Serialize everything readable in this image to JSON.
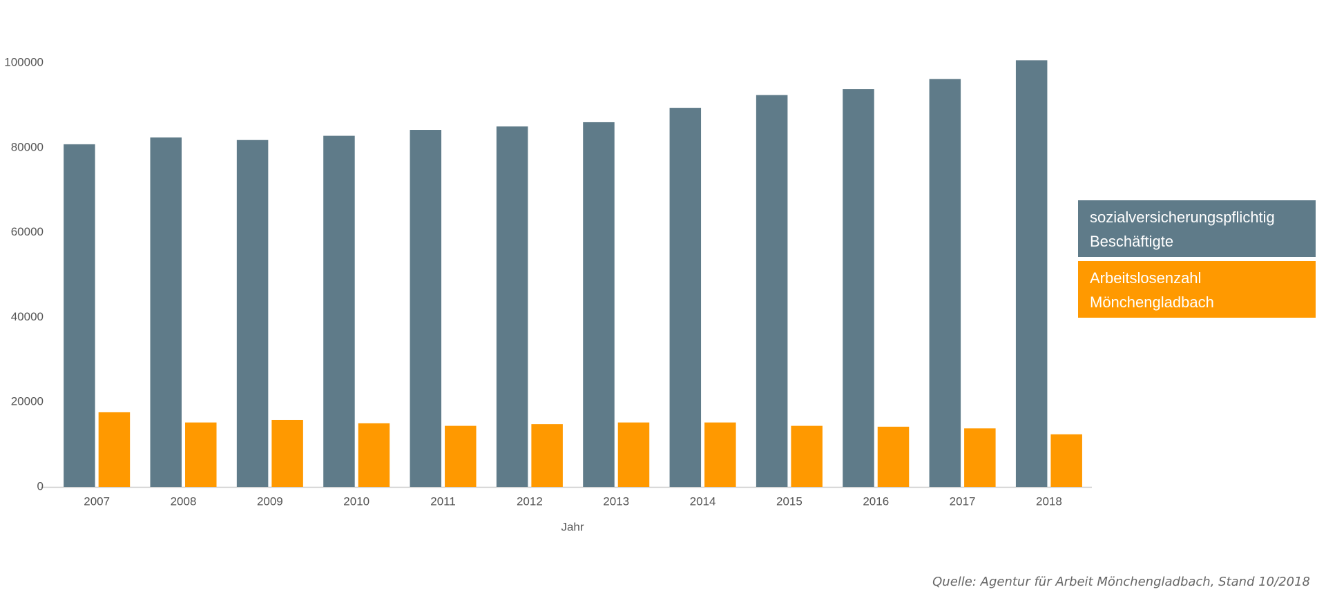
{
  "chart_data": {
    "type": "bar",
    "x_label": "Jahr",
    "categories": [
      "2007",
      "2008",
      "2009",
      "2010",
      "2011",
      "2012",
      "2013",
      "2014",
      "2015",
      "2016",
      "2017",
      "2018"
    ],
    "series": [
      {
        "name": "sozialversicherungspflichtig Beschäftigte",
        "color": "#5f7b89",
        "values": [
          80800,
          82400,
          81800,
          82800,
          84200,
          85000,
          86000,
          89400,
          92400,
          93800,
          96200,
          100600
        ]
      },
      {
        "name": "Arbeitslosenzahl Mönchengladbach",
        "color": "#ff9900",
        "values": [
          17600,
          15200,
          15800,
          15000,
          14400,
          14800,
          15200,
          15200,
          14400,
          14200,
          13800,
          12400
        ]
      }
    ],
    "ylim": [
      0,
      100000
    ],
    "yticks": [
      0,
      20000,
      40000,
      60000,
      80000,
      100000
    ],
    "grid": false,
    "legend": "right",
    "source": "Quelle: Agentur für Arbeit Mönchengladbach, Stand 10/2018"
  }
}
